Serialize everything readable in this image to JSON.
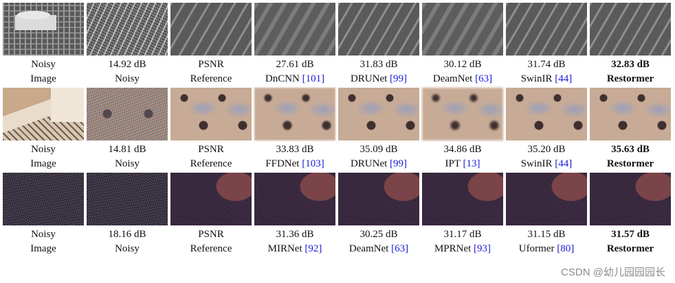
{
  "rows": [
    {
      "cells": [
        {
          "line1": "Noisy",
          "line2": "Image",
          "bold": false
        },
        {
          "line1": "14.92 dB",
          "line2": "Noisy",
          "bold": false
        },
        {
          "line1": "PSNR",
          "line2": "Reference",
          "bold": false
        },
        {
          "line1": "27.61 dB",
          "line2": "DnCNN",
          "ref": "[101]",
          "bold": false
        },
        {
          "line1": "31.83 dB",
          "line2": "DRUNet",
          "ref": "[99]",
          "bold": false
        },
        {
          "line1": "30.12 dB",
          "line2": "DeamNet",
          "ref": "[63]",
          "bold": false
        },
        {
          "line1": "31.74 dB",
          "line2": "SwinIR",
          "ref": "[44]",
          "bold": false
        },
        {
          "line1": "32.83 dB",
          "line2": "Restormer",
          "bold": true
        }
      ]
    },
    {
      "cells": [
        {
          "line1": "Noisy",
          "line2": "Image",
          "bold": false
        },
        {
          "line1": "14.81 dB",
          "line2": "Noisy",
          "bold": false
        },
        {
          "line1": "PSNR",
          "line2": "Reference",
          "bold": false
        },
        {
          "line1": "33.83 dB",
          "line2": "FFDNet",
          "ref": "[103]",
          "bold": false
        },
        {
          "line1": "35.09 dB",
          "line2": "DRUNet",
          "ref": "[99]",
          "bold": false
        },
        {
          "line1": "34.86 dB",
          "line2": "IPT",
          "ref": "[13]",
          "bold": false
        },
        {
          "line1": "35.20 dB",
          "line2": "SwinIR",
          "ref": "[44]",
          "bold": false
        },
        {
          "line1": "35.63 dB",
          "line2": "Restormer",
          "bold": true
        }
      ]
    },
    {
      "cells": [
        {
          "line1": "Noisy",
          "line2": "Image",
          "bold": false
        },
        {
          "line1": "18.16 dB",
          "line2": "Noisy",
          "bold": false
        },
        {
          "line1": "PSNR",
          "line2": "Reference",
          "bold": false
        },
        {
          "line1": "31.36 dB",
          "line2": "MIRNet",
          "ref": "[92]",
          "bold": false
        },
        {
          "line1": "30.25 dB",
          "line2": "DeamNet",
          "ref": "[63]",
          "bold": false
        },
        {
          "line1": "31.17 dB",
          "line2": "MPRNet",
          "ref": "[93]",
          "bold": false
        },
        {
          "line1": "31.15 dB",
          "line2": "Uformer",
          "ref": "[80]",
          "bold": false
        },
        {
          "line1": "31.57 dB",
          "line2": "Restormer",
          "bold": true
        }
      ]
    }
  ],
  "watermark": "CSDN @幼儿园园园长"
}
